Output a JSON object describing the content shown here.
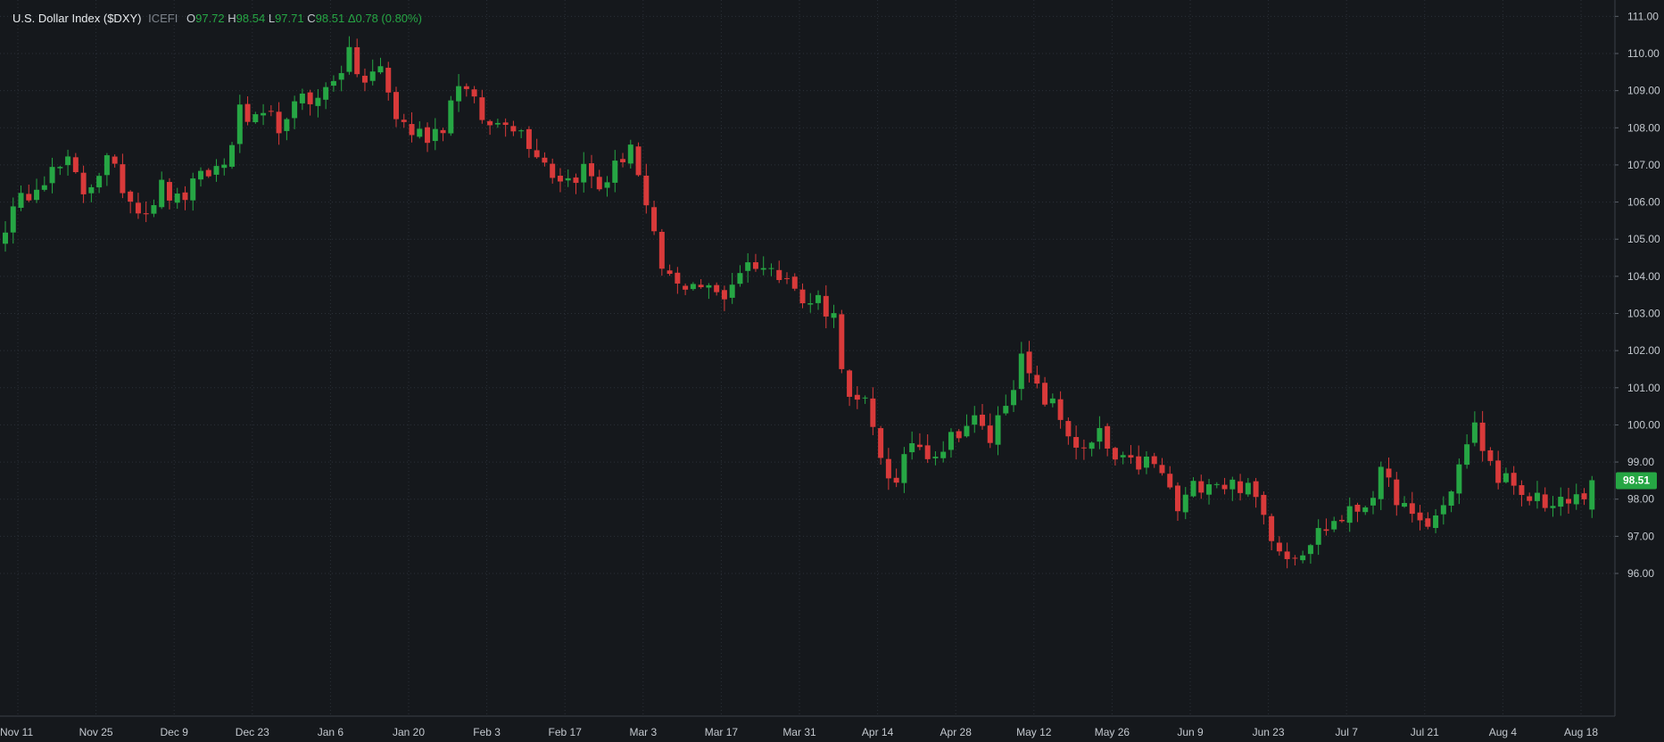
{
  "legend": {
    "title": "U.S. Dollar Index ($DXY)",
    "exchange": "ICEFI",
    "open_label": "O",
    "open": "97.72",
    "high_label": "H",
    "high": "98.54",
    "low_label": "L",
    "low": "97.71",
    "close_label": "C",
    "close": "98.51",
    "change": "Δ0.78 (0.80%)"
  },
  "colors": {
    "background": "#15181c",
    "grid": "#2b3038",
    "up": "#26a644",
    "down": "#d83a3a",
    "text": "#c4c9cf",
    "last_price_bg": "#26a644"
  },
  "chart_data": {
    "type": "candlestick",
    "title": "U.S. Dollar Index ($DXY)",
    "y_axis_side": "right",
    "ylim": [
      95.6,
      111.3
    ],
    "y_ticks": [
      "111.00",
      "110.00",
      "109.00",
      "108.00",
      "107.00",
      "106.00",
      "105.00",
      "104.00",
      "103.00",
      "102.00",
      "101.00",
      "100.00",
      "99.00",
      "98.00",
      "97.00",
      "96.00"
    ],
    "x_ticks": [
      "Nov 11",
      "Nov 25",
      "Dec 9",
      "Dec 23",
      "Jan 6",
      "Jan 20",
      "Feb 3",
      "Feb 17",
      "Mar 3",
      "Mar 17",
      "Mar 31",
      "Apr 14",
      "Apr 28",
      "May 12",
      "May 26",
      "Jun 9",
      "Jun 23",
      "Jul 7",
      "Jul 21",
      "Aug 4",
      "Aug 18"
    ],
    "grid": true,
    "last_price": "98.51",
    "close_path": [
      [
        0,
        105.4
      ],
      [
        4,
        106.6
      ],
      [
        8,
        107.0
      ],
      [
        10,
        106.3
      ],
      [
        13,
        107.1
      ],
      [
        16,
        106.1
      ],
      [
        18,
        105.8
      ],
      [
        20,
        106.4
      ],
      [
        22,
        106.0
      ],
      [
        24,
        106.4
      ],
      [
        26,
        106.8
      ],
      [
        28,
        107.0
      ],
      [
        30,
        108.4
      ],
      [
        32,
        108.1
      ],
      [
        34,
        108.2
      ],
      [
        36,
        108.0
      ],
      [
        38,
        109.0
      ],
      [
        40,
        108.7
      ],
      [
        42,
        109.4
      ],
      [
        44,
        109.9
      ],
      [
        46,
        109.2
      ],
      [
        48,
        109.6
      ],
      [
        50,
        108.3
      ],
      [
        52,
        107.9
      ],
      [
        54,
        107.8
      ],
      [
        56,
        108.1
      ],
      [
        58,
        109.3
      ],
      [
        60,
        108.6
      ],
      [
        62,
        108.0
      ],
      [
        64,
        108.3
      ],
      [
        66,
        107.9
      ],
      [
        68,
        107.4
      ],
      [
        70,
        106.8
      ],
      [
        72,
        106.6
      ],
      [
        74,
        106.9
      ],
      [
        76,
        106.4
      ],
      [
        78,
        106.9
      ],
      [
        80,
        107.6
      ],
      [
        82,
        105.7
      ],
      [
        84,
        104.2
      ],
      [
        86,
        103.7
      ],
      [
        88,
        103.9
      ],
      [
        90,
        103.6
      ],
      [
        92,
        103.5
      ],
      [
        94,
        104.2
      ],
      [
        96,
        104.4
      ],
      [
        98,
        104.1
      ],
      [
        100,
        104.2
      ],
      [
        102,
        103.2
      ],
      [
        104,
        103.4
      ],
      [
        106,
        102.9
      ],
      [
        108,
        100.6
      ],
      [
        110,
        100.5
      ],
      [
        112,
        99.2
      ],
      [
        114,
        98.3
      ],
      [
        116,
        99.6
      ],
      [
        118,
        99.3
      ],
      [
        120,
        99.4
      ],
      [
        122,
        99.9
      ],
      [
        124,
        100.1
      ],
      [
        126,
        99.6
      ],
      [
        128,
        100.7
      ],
      [
        130,
        101.7
      ],
      [
        132,
        100.9
      ],
      [
        134,
        100.5
      ],
      [
        136,
        99.8
      ],
      [
        138,
        99.2
      ],
      [
        140,
        99.7
      ],
      [
        142,
        99.0
      ],
      [
        144,
        98.9
      ],
      [
        146,
        99.0
      ],
      [
        148,
        98.7
      ],
      [
        150,
        97.7
      ],
      [
        152,
        98.3
      ],
      [
        154,
        98.6
      ],
      [
        156,
        98.4
      ],
      [
        158,
        98.4
      ],
      [
        160,
        98.0
      ],
      [
        162,
        97.1
      ],
      [
        164,
        96.5
      ],
      [
        166,
        96.7
      ],
      [
        168,
        97.1
      ],
      [
        170,
        97.4
      ],
      [
        172,
        97.6
      ],
      [
        174,
        97.9
      ],
      [
        176,
        98.6
      ],
      [
        178,
        98.1
      ],
      [
        180,
        97.4
      ],
      [
        182,
        97.3
      ],
      [
        184,
        97.8
      ],
      [
        186,
        98.9
      ],
      [
        188,
        99.9
      ],
      [
        190,
        98.9
      ],
      [
        192,
        98.5
      ],
      [
        194,
        97.9
      ],
      [
        196,
        98.1
      ],
      [
        198,
        97.8
      ],
      [
        200,
        97.9
      ],
      [
        202,
        98.1
      ],
      [
        203,
        98.51
      ]
    ]
  }
}
